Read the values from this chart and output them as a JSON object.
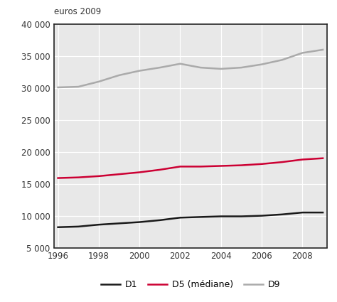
{
  "years": [
    1996,
    1997,
    1998,
    1999,
    2000,
    2001,
    2002,
    2003,
    2004,
    2005,
    2006,
    2007,
    2008,
    2009
  ],
  "D1": [
    8200,
    8300,
    8600,
    8800,
    9000,
    9300,
    9700,
    9800,
    9900,
    9900,
    10000,
    10200,
    10500,
    10500
  ],
  "D5": [
    15900,
    16000,
    16200,
    16500,
    16800,
    17200,
    17700,
    17700,
    17800,
    17900,
    18100,
    18400,
    18800,
    19000
  ],
  "D9": [
    30100,
    30200,
    31000,
    32000,
    32700,
    33200,
    33800,
    33200,
    33000,
    33200,
    33700,
    34400,
    35500,
    36000
  ],
  "D1_color": "#1a1a1a",
  "D5_color": "#cc0033",
  "D9_color": "#aaaaaa",
  "fig_bg_color": "#ffffff",
  "plot_bg_color": "#e8e8e8",
  "grid_color": "#ffffff",
  "spine_color": "#222222",
  "text_color": "#333333",
  "ylabel": "euros 2009",
  "ylim": [
    5000,
    40000
  ],
  "yticks": [
    5000,
    10000,
    15000,
    20000,
    25000,
    30000,
    35000,
    40000
  ],
  "ytick_labels": [
    "5 000",
    "10 000",
    "15 000",
    "20 000",
    "25 000",
    "30 000",
    "35 000",
    "40 000"
  ],
  "xlim_min": 1996,
  "xlim_max": 2009,
  "xticks": [
    1996,
    1998,
    2000,
    2002,
    2004,
    2006,
    2008
  ],
  "legend_labels": [
    "D1",
    "D5 (médiane)",
    "D9"
  ],
  "line_width": 1.8
}
